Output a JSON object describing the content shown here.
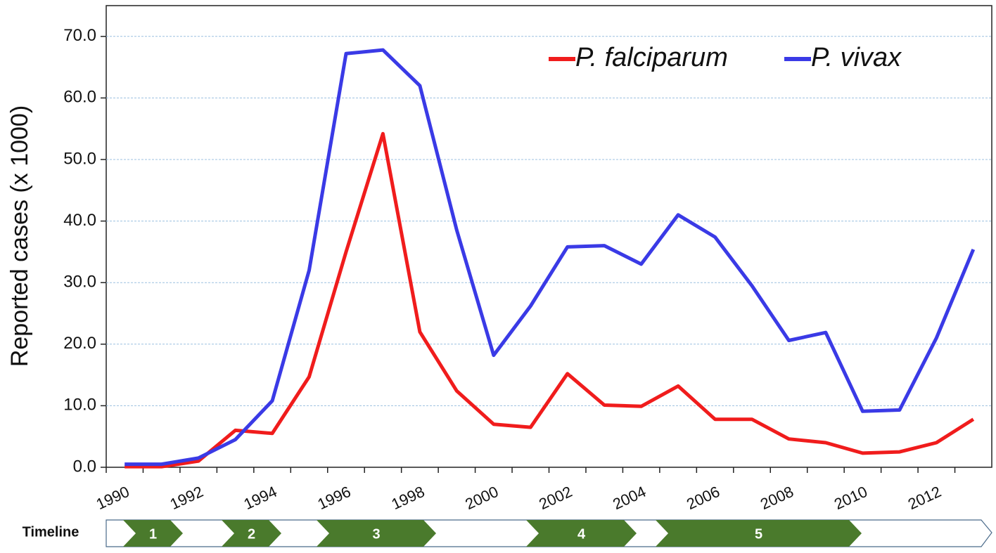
{
  "chart_data": {
    "type": "line",
    "ylabel": "Reported cases (x 1000)",
    "categories": [
      "1990",
      null,
      "1992",
      null,
      "1994",
      null,
      "1996",
      null,
      "1998",
      null,
      "2000",
      null,
      "2002",
      null,
      "2004",
      null,
      "2006",
      null,
      "2008",
      null,
      "2010",
      null,
      "2012",
      null
    ],
    "series": [
      {
        "name": "P. falciparum",
        "color": "#f01c1c",
        "values": [
          0.1,
          0.1,
          1.0,
          6.0,
          5.5,
          14.7,
          35.0,
          54.2,
          22.0,
          12.4,
          7.0,
          6.5,
          15.2,
          10.1,
          9.9,
          13.2,
          7.8,
          7.8,
          4.6,
          4.0,
          2.3,
          2.5,
          4.0,
          7.8
        ]
      },
      {
        "name": "P. vivax",
        "color": "#3a3ae6",
        "values": [
          0.5,
          0.5,
          1.5,
          4.5,
          10.8,
          32.0,
          67.2,
          67.8,
          62.0,
          38.5,
          18.2,
          26.2,
          35.8,
          36.0,
          33.0,
          41.0,
          37.4,
          29.5,
          20.6,
          21.9,
          9.1,
          9.3,
          21.0,
          35.4
        ]
      }
    ],
    "ylim": [
      0,
      75
    ],
    "yticks": [
      {
        "value": 0,
        "label": "0.0"
      },
      {
        "value": 10,
        "label": "10.0"
      },
      {
        "value": 20,
        "label": "20.0"
      },
      {
        "value": 30,
        "label": "30.0"
      },
      {
        "value": 40,
        "label": "40.0"
      },
      {
        "value": 50,
        "label": "50.0"
      },
      {
        "value": 60,
        "label": "60.0"
      },
      {
        "value": 70,
        "label": "70.0"
      }
    ],
    "grid": true,
    "legend": "top-right"
  },
  "timeline": {
    "label": "Timeline",
    "phases": [
      "1",
      "2",
      "3",
      "4",
      "5"
    ]
  }
}
